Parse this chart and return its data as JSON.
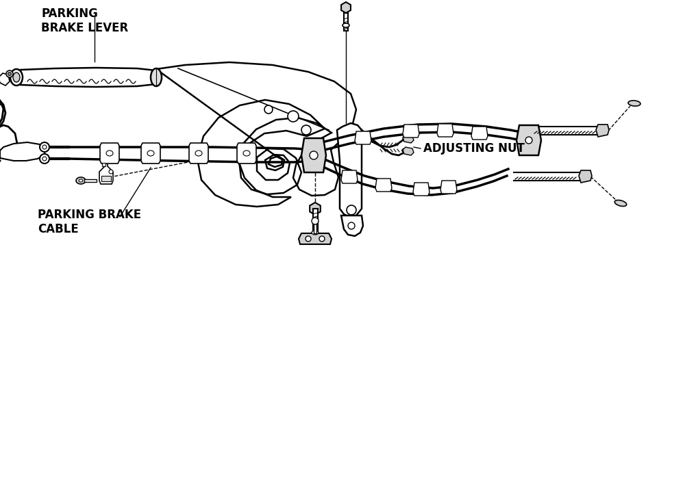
{
  "background_color": "#ffffff",
  "line_color": "#000000",
  "labels": {
    "parking_brake_lever": "PARKING\nBRAKE LEVER",
    "adjusting_nut": "ADJUSTING NUT",
    "parking_brake_cable": "PARKING BRAKE\nCABLE"
  },
  "figsize": [
    10,
    7.25
  ],
  "dpi": 100
}
